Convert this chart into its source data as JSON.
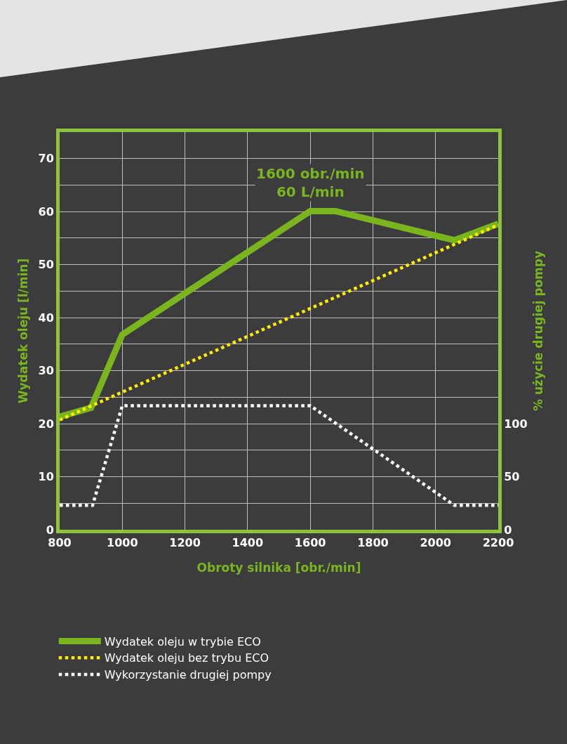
{
  "chart_data": {
    "type": "line",
    "xlabel": "Obroty silnika [obr./min]",
    "ylabel": "Wydatek oleju [l/min]",
    "y2label": "% użycie drugiej pompy",
    "xlim": [
      800,
      2200
    ],
    "xticks": [
      800,
      1000,
      1200,
      1400,
      1600,
      1800,
      2000,
      2200
    ],
    "ylim": [
      0,
      75
    ],
    "yticks": [
      0,
      {
        "value": 5,
        "label": null
      },
      10,
      {
        "value": 15,
        "label": null
      },
      20,
      {
        "value": 25,
        "label": null
      },
      30,
      {
        "value": 35,
        "label": null
      },
      40,
      {
        "value": 45,
        "label": null
      },
      50,
      {
        "value": 55,
        "label": null
      },
      60,
      {
        "value": 65,
        "label": null
      },
      70
    ],
    "y2lim": [
      0,
      375
    ],
    "y2ticks": [
      0,
      50,
      100
    ],
    "grid": true,
    "legend": "bottom",
    "annotations": [
      {
        "text": "1600 obr./min\n60 L/min",
        "x": 1600,
        "y": 60
      }
    ],
    "series": [
      {
        "name": "Wydatek oleju w trybie ECO",
        "color": "#7ab51d",
        "line_style": "solid",
        "x": [
          800,
          900,
          1000,
          1600,
          1680,
          2060,
          2200
        ],
        "values": [
          21.3,
          23,
          36.8,
          60.1,
          60.1,
          54.6,
          57.7
        ]
      },
      {
        "name": "Wydatek oleju bez trybu ECO",
        "color": "#ffed00",
        "line_style": "dotted",
        "x": [
          800,
          2200
        ],
        "values": [
          20.7,
          57.5
        ]
      },
      {
        "name": "Wykorzystanie drugiej pompy",
        "color": "#ffffff",
        "line_style": "dotted",
        "axis": "y2",
        "x": [
          800,
          905,
          1000,
          1600,
          2060,
          2200
        ],
        "values": [
          23,
          23,
          117,
          117,
          23,
          23
        ]
      }
    ]
  }
}
